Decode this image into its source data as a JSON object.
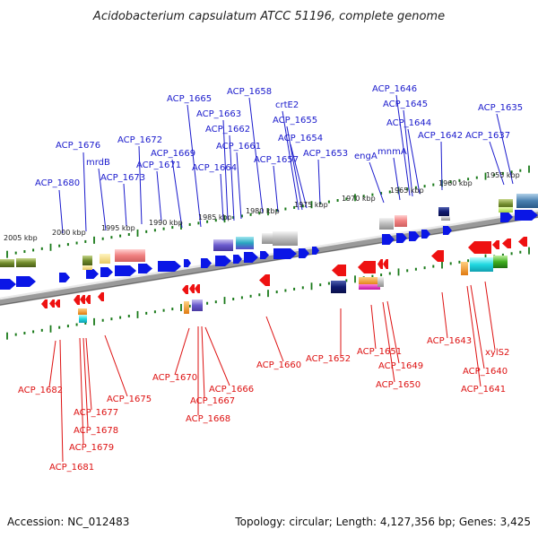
{
  "title": "Acidobacterium capsulatum ATCC 51196, complete genome",
  "footer": {
    "accession": "Accession: NC_012483",
    "topology": "Topology: circular; Length: 4,127,356 bp; Genes: 3,425"
  },
  "colors": {
    "forward_gene": "#0a16e6",
    "reverse_gene": "#ee1111",
    "forward_label": "#1a1acc",
    "reverse_label": "#dd1111",
    "tick": "#1a7a1a",
    "backbone": "#888888"
  },
  "scale_labels": [
    {
      "text": "2005 kbp",
      "kbp": 2005
    },
    {
      "text": "2000 kbp",
      "kbp": 2000
    },
    {
      "text": "1995 kbp",
      "kbp": 1995
    },
    {
      "text": "1990 kbp",
      "kbp": 1990
    },
    {
      "text": "1985 kbp",
      "kbp": 1985
    },
    {
      "text": "1980 kbp",
      "kbp": 1980
    },
    {
      "text": "1975 kbp",
      "kbp": 1975
    },
    {
      "text": "1970 kbp",
      "kbp": 1970
    },
    {
      "text": "1965 kbp",
      "kbp": 1965
    },
    {
      "text": "1960 kbp",
      "kbp": 1960
    },
    {
      "text": "1955 kbp",
      "kbp": 1955
    }
  ],
  "forward_labels": [
    "ACP_1680",
    "ACP_1676",
    "mrdB",
    "ACP_1673",
    "ACP_1672",
    "ACP_1671",
    "ACP_1669",
    "ACP_1665",
    "ACP_1664",
    "ACP_1663",
    "ACP_1662",
    "ACP_1661",
    "ACP_1658",
    "ACP_1657",
    "crtE2",
    "ACP_1655",
    "ACP_1654",
    "ACP_1653",
    "engA",
    "mnmA",
    "ACP_1646",
    "ACP_1645",
    "ACP_1644",
    "ACP_1642",
    "ACP_1637",
    "ACP_1635"
  ],
  "reverse_labels": [
    "ACP_1682",
    "ACP_1681",
    "ACP_1679",
    "ACP_1678",
    "ACP_1677",
    "ACP_1675",
    "ACP_1670",
    "ACP_1668",
    "ACP_1667",
    "ACP_1666",
    "ACP_1660",
    "ACP_1652",
    "ACP_1651",
    "ACP_1650",
    "ACP_1649",
    "ACP_1643",
    "ACP_1641",
    "ACP_1640",
    "xylS2"
  ]
}
